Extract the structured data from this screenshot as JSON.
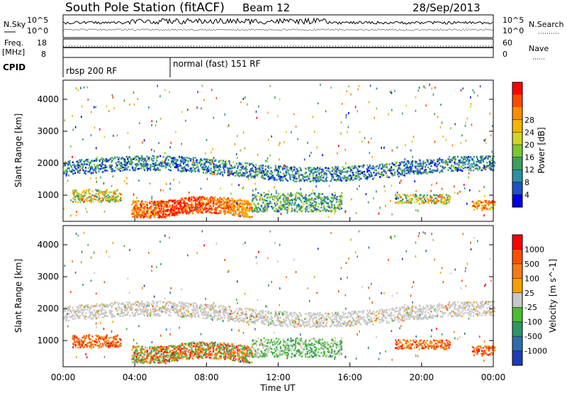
{
  "header": {
    "station": "South Pole Station (fitACF)",
    "beam": "Beam 12",
    "date": "28/Sep/2013"
  },
  "param_panels": {
    "nsky_label": "N.Sky",
    "nsearch_label": "N.Search",
    "noise_ticks_left": [
      "10^5",
      "10^0"
    ],
    "noise_ticks_right": [
      "10^5",
      "10^0"
    ],
    "freq_label": [
      "Freq.",
      "[MHz]"
    ],
    "freq_ticks": [
      "18",
      "8"
    ],
    "nave_label": "Nave",
    "nave_ticks": [
      "60",
      "0"
    ],
    "cpid_label": "CPID",
    "cpid_segments": [
      "rbsp 200 RF",
      "normal (fast) 151 RF"
    ]
  },
  "chart_data": [
    {
      "type": "heatmap",
      "title": "",
      "xlabel": "Time UT",
      "ylabel": "Slant Range [km]",
      "xlim": [
        "00:00",
        "00:00"
      ],
      "x_ticks": [
        "00:00",
        "04:00",
        "08:00",
        "12:00",
        "16:00",
        "20:00",
        "00:00"
      ],
      "ylim": [
        180,
        4600
      ],
      "y_ticks": [
        1000,
        2000,
        3000,
        4000
      ],
      "colorbar": {
        "label": "Power [dB]",
        "ticks": [
          "4",
          "8",
          "12",
          "16",
          "20",
          "24",
          "28"
        ],
        "colors": [
          "#0000e0",
          "#1e50c8",
          "#2d8fa0",
          "#3f9e60",
          "#7ac832",
          "#d2d228",
          "#f5b400",
          "#ff8c00",
          "#ff4800",
          "#ff0000"
        ]
      }
    },
    {
      "type": "heatmap",
      "title": "",
      "xlabel": "Time UT",
      "ylabel": "Slant Range [km]",
      "xlim": [
        "00:00",
        "00:00"
      ],
      "x_ticks": [
        "00:00",
        "04:00",
        "08:00",
        "12:00",
        "16:00",
        "20:00",
        "00:00"
      ],
      "ylim": [
        180,
        4600
      ],
      "y_ticks": [
        1000,
        2000,
        3000,
        4000
      ],
      "colorbar": {
        "label": "Velocity [m s^-1]",
        "ticks": [
          "1000",
          "500",
          "100",
          "25",
          "-25",
          "-100",
          "-500",
          "-1000"
        ],
        "colors": [
          "#1e3cb4",
          "#2d6eaa",
          "#2d9664",
          "#4bbe32",
          "#c8c8c8",
          "#f5a000",
          "#f57814",
          "#fa5000",
          "#ff0000"
        ]
      }
    }
  ]
}
